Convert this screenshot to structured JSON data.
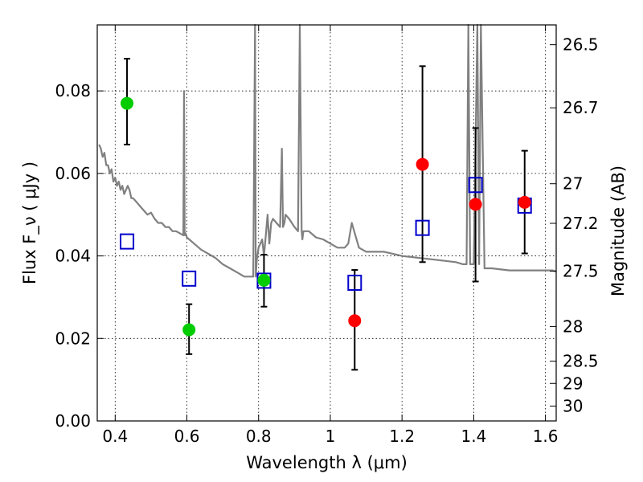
{
  "chart_data": {
    "type": "scatter",
    "xlabel": "Wavelength  λ (μm)",
    "ylabel": "Flux  F_ν  ( μJy )",
    "ylabel_right": "Magnitude (AB)",
    "xlim": [
      0.35,
      1.63
    ],
    "ylim": [
      0.0,
      0.096
    ],
    "grid": true,
    "x_ticks": [
      0.4,
      0.6,
      0.8,
      1.0,
      1.2,
      1.4,
      1.6
    ],
    "x_tick_labels": [
      "0.4",
      "0.6",
      "0.8",
      "1",
      "1.2",
      "1.4",
      "1.6"
    ],
    "y_ticks": [
      0.0,
      0.02,
      0.04,
      0.06,
      0.08
    ],
    "y_tick_labels": [
      "0.00",
      "0.02",
      "0.04",
      "0.06",
      "0.08"
    ],
    "right_ticks": [
      {
        "label": "26.5",
        "flux": 0.0912
      },
      {
        "label": "26.7",
        "flux": 0.0759
      },
      {
        "label": "27",
        "flux": 0.0575
      },
      {
        "label": "27.2",
        "flux": 0.0479
      },
      {
        "label": "27.5",
        "flux": 0.0363
      },
      {
        "label": "28",
        "flux": 0.0229
      },
      {
        "label": "28.5",
        "flux": 0.0145
      },
      {
        "label": "29",
        "flux": 0.0091
      },
      {
        "label": "30",
        "flux": 0.0036
      }
    ],
    "model_spectrum": {
      "color": "#808080",
      "x": [
        0.355,
        0.36,
        0.365,
        0.37,
        0.375,
        0.38,
        0.385,
        0.39,
        0.395,
        0.4,
        0.405,
        0.41,
        0.415,
        0.42,
        0.425,
        0.43,
        0.435,
        0.44,
        0.445,
        0.45,
        0.46,
        0.47,
        0.48,
        0.49,
        0.5,
        0.51,
        0.52,
        0.53,
        0.54,
        0.55,
        0.56,
        0.57,
        0.58,
        0.59,
        0.592,
        0.594,
        0.596,
        0.6,
        0.62,
        0.64,
        0.66,
        0.68,
        0.7,
        0.72,
        0.74,
        0.76,
        0.775,
        0.785,
        0.79,
        0.792,
        0.795,
        0.8,
        0.805,
        0.81,
        0.815,
        0.82,
        0.825,
        0.83,
        0.835,
        0.84,
        0.85,
        0.86,
        0.865,
        0.868,
        0.872,
        0.875,
        0.885,
        0.9,
        0.91,
        0.915,
        0.92,
        0.922,
        0.925,
        0.94,
        0.96,
        0.98,
        1.0,
        1.02,
        1.04,
        1.05,
        1.06,
        1.08,
        1.1,
        1.15,
        1.2,
        1.25,
        1.3,
        1.35,
        1.37,
        1.38,
        1.385,
        1.39,
        1.4,
        1.41,
        1.415,
        1.42,
        1.43,
        1.45,
        1.5,
        1.55,
        1.58,
        1.6,
        1.62,
        1.63
      ],
      "y": [
        0.067,
        0.066,
        0.064,
        0.065,
        0.062,
        0.062,
        0.06,
        0.061,
        0.058,
        0.059,
        0.057,
        0.058,
        0.056,
        0.057,
        0.055,
        0.056,
        0.057,
        0.056,
        0.054,
        0.054,
        0.053,
        0.052,
        0.051,
        0.05,
        0.0505,
        0.049,
        0.048,
        0.048,
        0.047,
        0.047,
        0.046,
        0.046,
        0.0455,
        0.045,
        0.08,
        0.045,
        0.0455,
        0.0445,
        0.043,
        0.0415,
        0.0405,
        0.0395,
        0.038,
        0.037,
        0.036,
        0.035,
        0.035,
        0.035,
        0.097,
        0.035,
        0.039,
        0.042,
        0.043,
        0.044,
        0.04,
        0.045,
        0.05,
        0.043,
        0.048,
        0.049,
        0.048,
        0.047,
        0.066,
        0.047,
        0.048,
        0.05,
        0.049,
        0.047,
        0.046,
        0.097,
        0.046,
        0.044,
        0.046,
        0.046,
        0.0445,
        0.044,
        0.043,
        0.042,
        0.042,
        0.043,
        0.048,
        0.042,
        0.041,
        0.041,
        0.04,
        0.0395,
        0.039,
        0.0385,
        0.038,
        0.038,
        0.097,
        0.038,
        0.038,
        0.097,
        0.038,
        0.097,
        0.037,
        0.037,
        0.0365,
        0.0365,
        0.0365,
        0.0365,
        0.0365,
        0.0362
      ]
    },
    "model_points": {
      "marker": "open-square",
      "color": "#0000cc",
      "x": [
        0.433,
        0.606,
        0.815,
        1.068,
        1.257,
        1.405,
        1.542
      ],
      "y": [
        0.0435,
        0.0345,
        0.034,
        0.0335,
        0.0468,
        0.0572,
        0.0522
      ]
    },
    "observed_points": [
      {
        "x": 0.433,
        "y": 0.077,
        "yerr_low": 0.067,
        "yerr_high": 0.0878,
        "color": "#00cc00"
      },
      {
        "x": 0.606,
        "y": 0.0221,
        "yerr_low": 0.0162,
        "yerr_high": 0.0283,
        "color": "#00cc00"
      },
      {
        "x": 0.815,
        "y": 0.0341,
        "yerr_low": 0.0277,
        "yerr_high": 0.0403,
        "color": "#00cc00"
      },
      {
        "x": 1.068,
        "y": 0.0243,
        "yerr_low": 0.0124,
        "yerr_high": 0.0366,
        "color": "#ff0000"
      },
      {
        "x": 1.257,
        "y": 0.0622,
        "yerr_low": 0.0385,
        "yerr_high": 0.086,
        "color": "#ff0000"
      },
      {
        "x": 1.405,
        "y": 0.0525,
        "yerr_low": 0.0338,
        "yerr_high": 0.071,
        "color": "#ff0000"
      },
      {
        "x": 1.542,
        "y": 0.053,
        "yerr_low": 0.0406,
        "yerr_high": 0.0655,
        "color": "#ff0000"
      }
    ]
  }
}
